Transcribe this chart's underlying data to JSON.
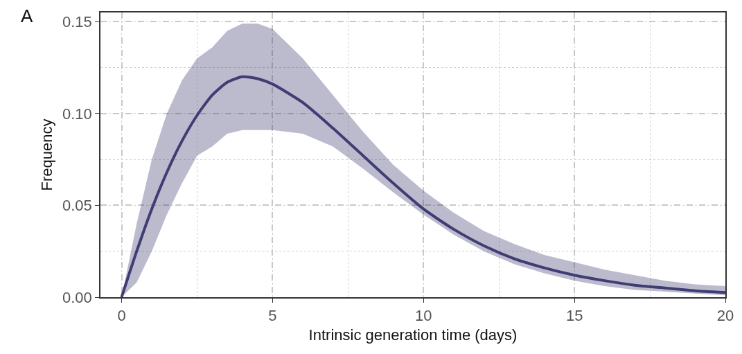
{
  "chart_data": {
    "type": "line",
    "xlabel": "Intrinsic generation time (days)",
    "ylabel": "Frequency",
    "annotations": [
      "A"
    ],
    "x": [
      0,
      0.5,
      1,
      1.5,
      2,
      2.5,
      3,
      3.5,
      4,
      4.5,
      5,
      6,
      7,
      8,
      9,
      10,
      11,
      12,
      13,
      14,
      15,
      16,
      17,
      18,
      19,
      20
    ],
    "series": [
      {
        "color": "#3f3d73",
        "values": [
          0,
          0.025,
          0.048,
          0.068,
          0.085,
          0.099,
          0.11,
          0.117,
          0.12,
          0.119,
          0.116,
          0.106,
          0.092,
          0.077,
          0.062,
          0.048,
          0.037,
          0.028,
          0.021,
          0.016,
          0.012,
          0.009,
          0.0065,
          0.005,
          0.0035,
          0.0025
        ],
        "lower": [
          0,
          0.008,
          0.025,
          0.045,
          0.062,
          0.077,
          0.082,
          0.089,
          0.091,
          0.091,
          0.091,
          0.089,
          0.082,
          0.07,
          0.057,
          0.045,
          0.034,
          0.025,
          0.018,
          0.013,
          0.009,
          0.006,
          0.004,
          0.003,
          0.002,
          0.001
        ],
        "upper": [
          0,
          0.04,
          0.075,
          0.1,
          0.118,
          0.13,
          0.136,
          0.145,
          0.149,
          0.149,
          0.146,
          0.13,
          0.11,
          0.09,
          0.072,
          0.058,
          0.046,
          0.036,
          0.029,
          0.023,
          0.019,
          0.015,
          0.012,
          0.009,
          0.007,
          0.006
        ]
      }
    ],
    "xlim": [
      -0.7,
      20
    ],
    "ylim": [
      0,
      0.155
    ],
    "xticks": [
      0,
      5,
      10,
      15,
      20
    ],
    "yticks": [
      {
        "value": 0,
        "label": "0.00"
      },
      {
        "value": 0.05,
        "label": "0.05"
      },
      {
        "value": 0.1,
        "label": "0.10"
      },
      {
        "value": 0.15,
        "label": "0.15"
      }
    ],
    "grid": true,
    "line_style": "solid",
    "marker": "none"
  }
}
